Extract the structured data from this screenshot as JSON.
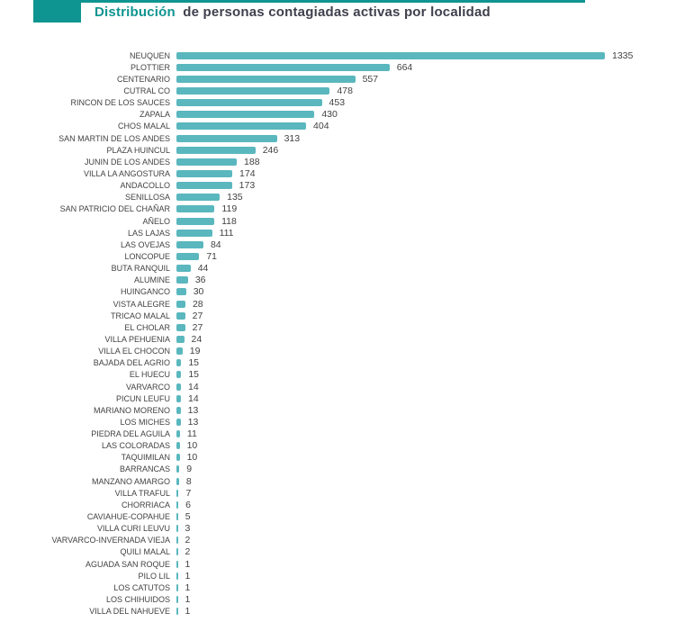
{
  "header": {
    "title_accent": "Distribución",
    "title_rest": "de personas contagiadas activas por localidad"
  },
  "colors": {
    "accent_teal": "#0f9591",
    "bar_fill": "#5ab7be",
    "title_text": "#3f3f4d",
    "label_text": "#424242"
  },
  "chart_data": {
    "type": "bar",
    "orientation": "horizontal",
    "title": "Distribución de personas contagiadas activas por localidad",
    "xlabel": "",
    "ylabel": "",
    "xlim": [
      0,
      1400
    ],
    "grid": false,
    "legend": false,
    "value_labels": "end-of-bar",
    "categories": [
      "NEUQUEN",
      "PLOTTIER",
      "CENTENARIO",
      "CUTRAL CO",
      "RINCON DE LOS SAUCES",
      "ZAPALA",
      "CHOS MALAL",
      "SAN MARTIN DE LOS ANDES",
      "PLAZA HUINCUL",
      "JUNIN DE LOS ANDES",
      "VILLA LA ANGOSTURA",
      "ANDACOLLO",
      "SENILLOSA",
      "SAN PATRICIO DEL CHAÑAR",
      "AÑELO",
      "LAS LAJAS",
      "LAS OVEJAS",
      "LONCOPUE",
      "BUTA RANQUIL",
      "ALUMINE",
      "HUINGANCO",
      "VISTA ALEGRE",
      "TRICAO MALAL",
      "EL CHOLAR",
      "VILLA PEHUENIA",
      "VILLA EL CHOCON",
      "BAJADA DEL AGRIO",
      "EL HUECU",
      "VARVARCO",
      "PICUN LEUFU",
      "MARIANO MORENO",
      "LOS MICHES",
      "PIEDRA DEL AGUILA",
      "LAS COLORADAS",
      "TAQUIMILAN",
      "BARRANCAS",
      "MANZANO AMARGO",
      "VILLA TRAFUL",
      "CHORRIACA",
      "CAVIAHUE-COPAHUE",
      "VILLA CURI LEUVU",
      "VARVARCO-INVERNADA VIEJA",
      "QUILI MALAL",
      "AGUADA SAN ROQUE",
      "PILO LIL",
      "LOS CATUTOS",
      "LOS CHIHUIDOS",
      "VILLA DEL NAHUEVE"
    ],
    "values": [
      1335,
      664,
      557,
      478,
      453,
      430,
      404,
      313,
      246,
      188,
      174,
      173,
      135,
      119,
      118,
      111,
      84,
      71,
      44,
      36,
      30,
      28,
      27,
      27,
      24,
      19,
      15,
      15,
      14,
      14,
      13,
      13,
      11,
      10,
      10,
      9,
      8,
      7,
      6,
      5,
      3,
      2,
      2,
      1,
      1,
      1,
      1,
      1
    ]
  }
}
